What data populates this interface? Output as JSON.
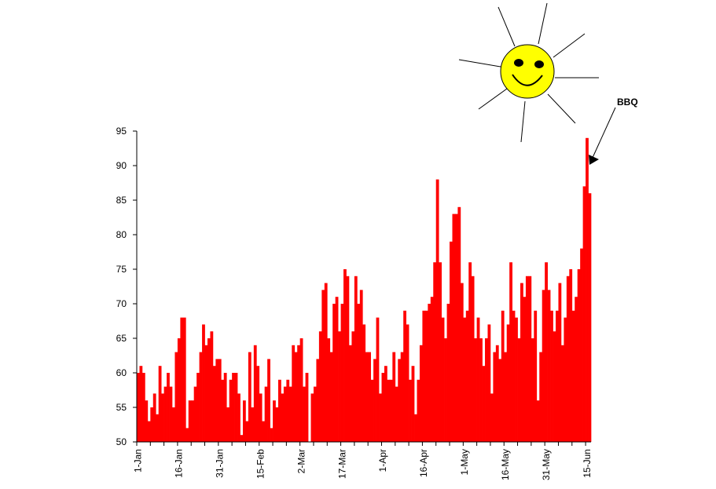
{
  "chart_data": {
    "type": "bar",
    "color": "#ff0000",
    "ylim": [
      50,
      95
    ],
    "yticks": [
      50,
      55,
      60,
      65,
      70,
      75,
      80,
      85,
      90,
      95
    ],
    "xtick_labels": [
      "1-Jan",
      "16-Jan",
      "31-Jan",
      "15-Feb",
      "2-Mar",
      "17-Mar",
      "1-Apr",
      "16-Apr",
      "1-May",
      "16-May",
      "31-May",
      "15-Jun"
    ],
    "values": [
      60,
      61,
      60,
      56,
      53,
      55,
      57,
      54,
      61,
      57,
      58,
      60,
      58,
      55,
      63,
      65,
      68,
      68,
      52,
      56,
      56,
      58,
      60,
      63,
      67,
      64,
      65,
      66,
      61,
      62,
      62,
      59,
      60,
      55,
      59,
      60,
      60,
      57,
      51,
      56,
      53,
      63,
      55,
      64,
      61,
      57,
      53,
      58,
      62,
      52,
      56,
      55,
      59,
      57,
      58,
      59,
      58,
      64,
      63,
      64,
      65,
      58,
      60,
      50,
      57,
      58,
      62,
      66,
      72,
      73,
      65,
      63,
      70,
      71,
      66,
      70,
      75,
      74,
      64,
      66,
      74,
      70,
      72,
      67,
      63,
      63,
      59,
      62,
      68,
      57,
      60,
      61,
      59,
      59,
      63,
      58,
      62,
      63,
      69,
      67,
      59,
      61,
      54,
      59,
      64,
      69,
      69,
      70,
      71,
      76,
      88,
      76,
      68,
      65,
      70,
      79,
      83,
      83,
      84,
      73,
      68,
      69,
      76,
      74,
      65,
      68,
      65,
      61,
      65,
      67,
      57,
      63,
      64,
      62,
      69,
      63,
      67,
      76,
      69,
      68,
      65,
      73,
      71,
      74,
      74,
      65,
      69,
      56,
      63,
      72,
      76,
      72,
      69,
      66,
      69,
      73,
      64,
      68,
      74,
      75,
      69,
      71,
      75,
      78,
      87,
      94,
      86
    ],
    "annotation": {
      "text": "BBQ"
    }
  }
}
